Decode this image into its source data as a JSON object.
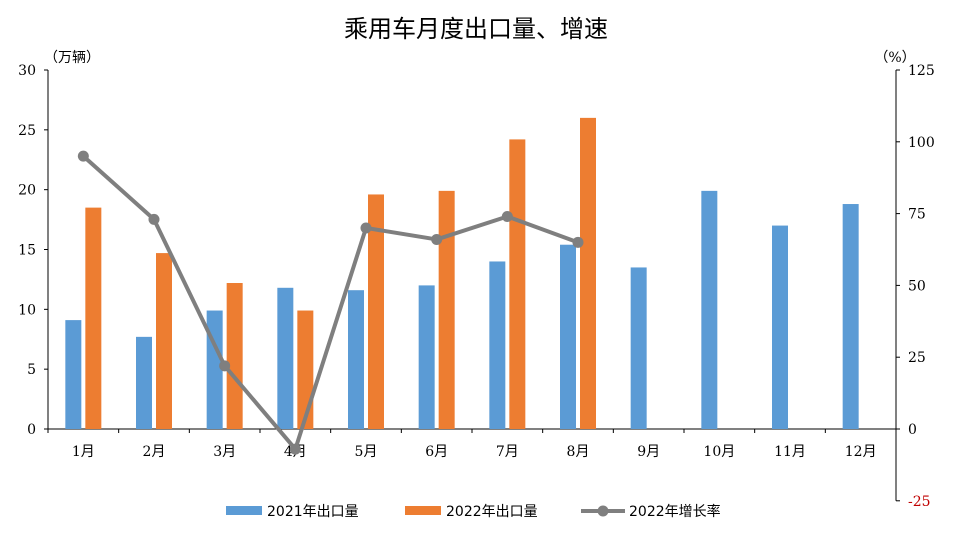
{
  "chart_data": {
    "type": "bar",
    "title": "乘用车月度出口量、增速",
    "left_unit": "（万辆）",
    "right_unit": "（%）",
    "categories": [
      "1月",
      "2月",
      "3月",
      "4月",
      "5月",
      "6月",
      "7月",
      "8月",
      "9月",
      "10月",
      "11月",
      "12月"
    ],
    "series": [
      {
        "name": "2021年出口量",
        "type": "bar",
        "axis": "left",
        "color": "#5b9bd5",
        "values": [
          9.1,
          7.7,
          9.9,
          11.8,
          11.6,
          12.0,
          14.0,
          15.4,
          13.5,
          19.9,
          17.0,
          18.8
        ]
      },
      {
        "name": "2022年出口量",
        "type": "bar",
        "axis": "left",
        "color": "#ed7d31",
        "values": [
          18.5,
          14.7,
          12.2,
          9.9,
          19.6,
          19.9,
          24.2,
          26.0,
          null,
          null,
          null,
          null
        ]
      },
      {
        "name": "2022年增长率",
        "type": "line",
        "axis": "right",
        "color": "#7f7f7f",
        "values": [
          95,
          73,
          22,
          -7,
          70,
          66,
          74,
          65,
          null,
          null,
          null,
          null
        ]
      }
    ],
    "left_ylim": [
      0,
      30
    ],
    "left_ticks": [
      "0",
      "5",
      "10",
      "15",
      "20",
      "25",
      "30"
    ],
    "right_ylim": [
      -25,
      125
    ],
    "right_ticks": [
      "-25",
      "0",
      "25",
      "50",
      "75",
      "100",
      "125"
    ],
    "grid": false,
    "legend_position": "bottom"
  }
}
